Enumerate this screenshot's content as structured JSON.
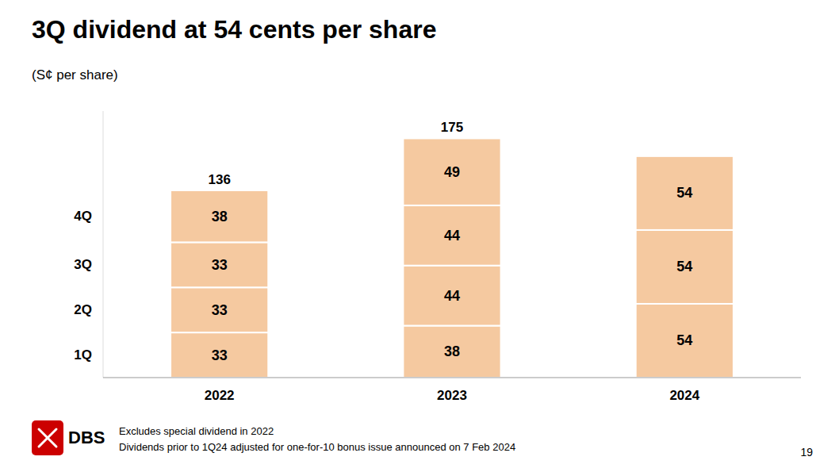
{
  "chart_data": {
    "type": "bar",
    "stacked": true,
    "title": "3Q dividend at 54 cents per share",
    "subtitle": "(S¢ per share)",
    "categories": [
      "2022",
      "2023",
      "2024"
    ],
    "series": [
      {
        "name": "1Q",
        "color": "#F5C9A0",
        "values": [
          33,
          38,
          54
        ]
      },
      {
        "name": "2Q",
        "color": "#F5C9A0",
        "values": [
          33,
          44,
          54
        ]
      },
      {
        "name": "3Q",
        "color": "#F5C9A0",
        "values": [
          33,
          44,
          54
        ]
      },
      {
        "name": "4Q",
        "color": "#F5C9A0",
        "values": [
          38,
          49,
          null
        ]
      }
    ],
    "totals": [
      136,
      175,
      null
    ],
    "ylim": [
      0,
      195
    ],
    "data_labels": true,
    "tick_labels": "x",
    "grid": false,
    "footnotes": [
      "Excludes special dividend in 2022",
      "Dividends prior to 1Q24 adjusted for one-for-10 bonus issue announced on 7 Feb 2024"
    ],
    "page_number": "19",
    "logo_text": "DBS"
  }
}
